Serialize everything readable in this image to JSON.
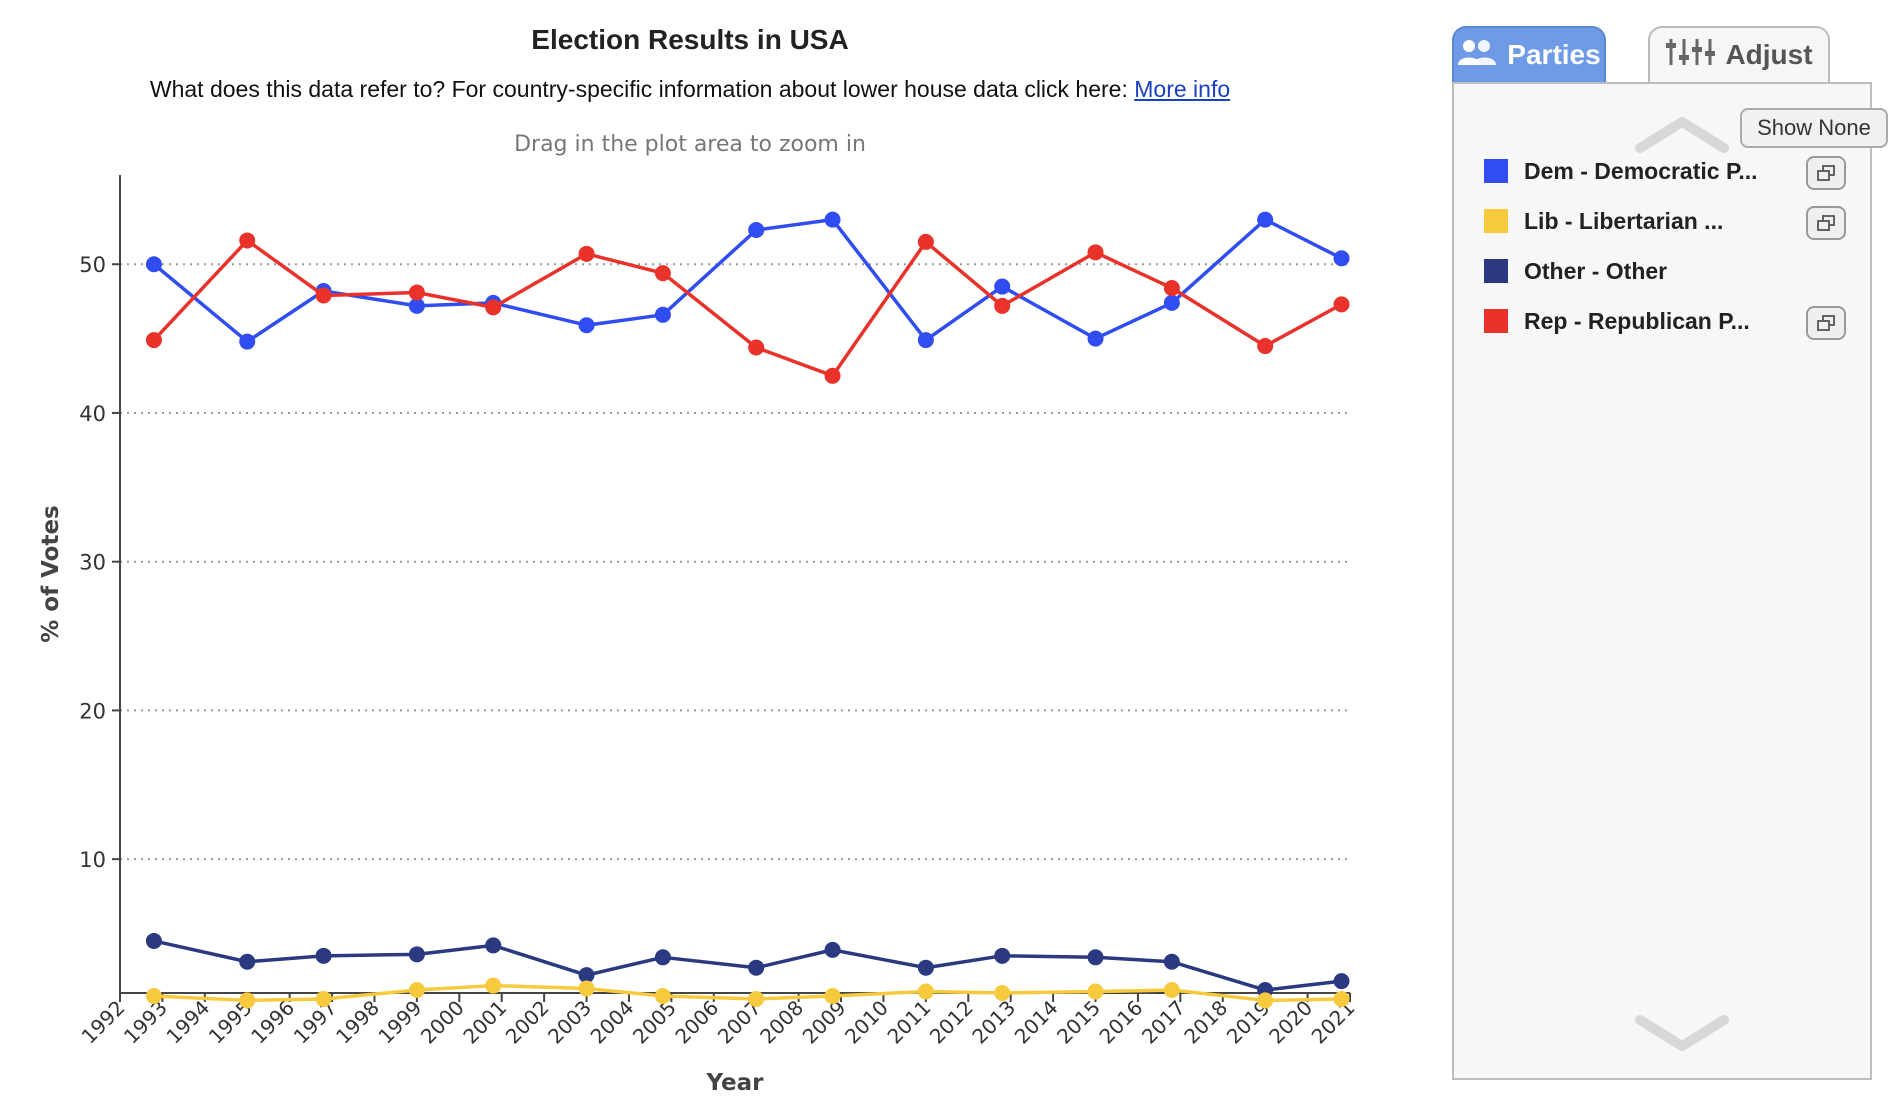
{
  "header": {
    "title": "Election Results in USA",
    "subtitle": "What does this data refer to? For country-specific information about lower house data click here:",
    "more_info_link": "More info",
    "zoom_hint": "Drag in the plot area to zoom in"
  },
  "tabs": [
    {
      "label": "Parties",
      "icon": "people-icon",
      "active": true
    },
    {
      "label": "Adjust",
      "icon": "sliders-icon",
      "active": false
    }
  ],
  "panel": {
    "show_none_label": "Show None",
    "scroll_up_icon": "chevron-up-icon",
    "scroll_down_icon": "chevron-down-icon",
    "legend": [
      {
        "label": "Dem - Democratic P...",
        "color": "#2f4df0",
        "has_popout": true
      },
      {
        "label": "Lib - Libertarian ...",
        "color": "#f7ca3e",
        "has_popout": true
      },
      {
        "label": "Other - Other",
        "color": "#2b3a80",
        "has_popout": false
      },
      {
        "label": "Rep - Republican P...",
        "color": "#e8322a",
        "has_popout": true
      }
    ]
  },
  "chart_data": {
    "type": "line",
    "xlabel": "Year",
    "ylabel": "% of Votes",
    "xlim": [
      1992,
      2021
    ],
    "ylim": [
      1,
      56
    ],
    "yticks": [
      10,
      20,
      30,
      40,
      50
    ],
    "xticks": [
      1992,
      1993,
      1994,
      1995,
      1996,
      1997,
      1998,
      1999,
      2000,
      2001,
      2002,
      2003,
      2004,
      2005,
      2006,
      2007,
      2008,
      2009,
      2010,
      2011,
      2012,
      2013,
      2014,
      2015,
      2016,
      2017,
      2018,
      2019,
      2020,
      2021
    ],
    "grid": "horizontal dotted",
    "x": [
      1992.8,
      1995,
      1996.8,
      1999,
      2000.8,
      2003,
      2004.8,
      2007,
      2008.8,
      2011,
      2012.8,
      2015,
      2016.8,
      2019,
      2020.8
    ],
    "series": [
      {
        "name": "Dem - Democratic P...",
        "color": "#2f4df0",
        "values": [
          50.0,
          44.8,
          48.2,
          47.2,
          47.4,
          45.9,
          46.6,
          52.3,
          53.0,
          44.9,
          48.5,
          45.0,
          47.4,
          53.0,
          50.4
        ]
      },
      {
        "name": "Rep - Republican P...",
        "color": "#e8322a",
        "values": [
          44.9,
          51.6,
          47.9,
          48.1,
          47.1,
          50.7,
          49.4,
          44.4,
          42.5,
          51.5,
          47.2,
          50.8,
          48.4,
          44.5,
          47.3
        ]
      },
      {
        "name": "Other - Other",
        "color": "#2b3a80",
        "values": [
          4.5,
          3.1,
          3.5,
          3.6,
          4.2,
          2.2,
          3.4,
          2.7,
          3.9,
          2.7,
          3.5,
          3.4,
          3.1,
          1.2,
          1.8
        ]
      },
      {
        "name": "Lib - Libertarian ...",
        "color": "#f7ca3e",
        "values": [
          0.8,
          0.5,
          0.6,
          1.2,
          1.5,
          1.3,
          0.8,
          0.6,
          0.8,
          1.1,
          1.0,
          1.1,
          1.2,
          0.5,
          0.6
        ]
      }
    ]
  }
}
